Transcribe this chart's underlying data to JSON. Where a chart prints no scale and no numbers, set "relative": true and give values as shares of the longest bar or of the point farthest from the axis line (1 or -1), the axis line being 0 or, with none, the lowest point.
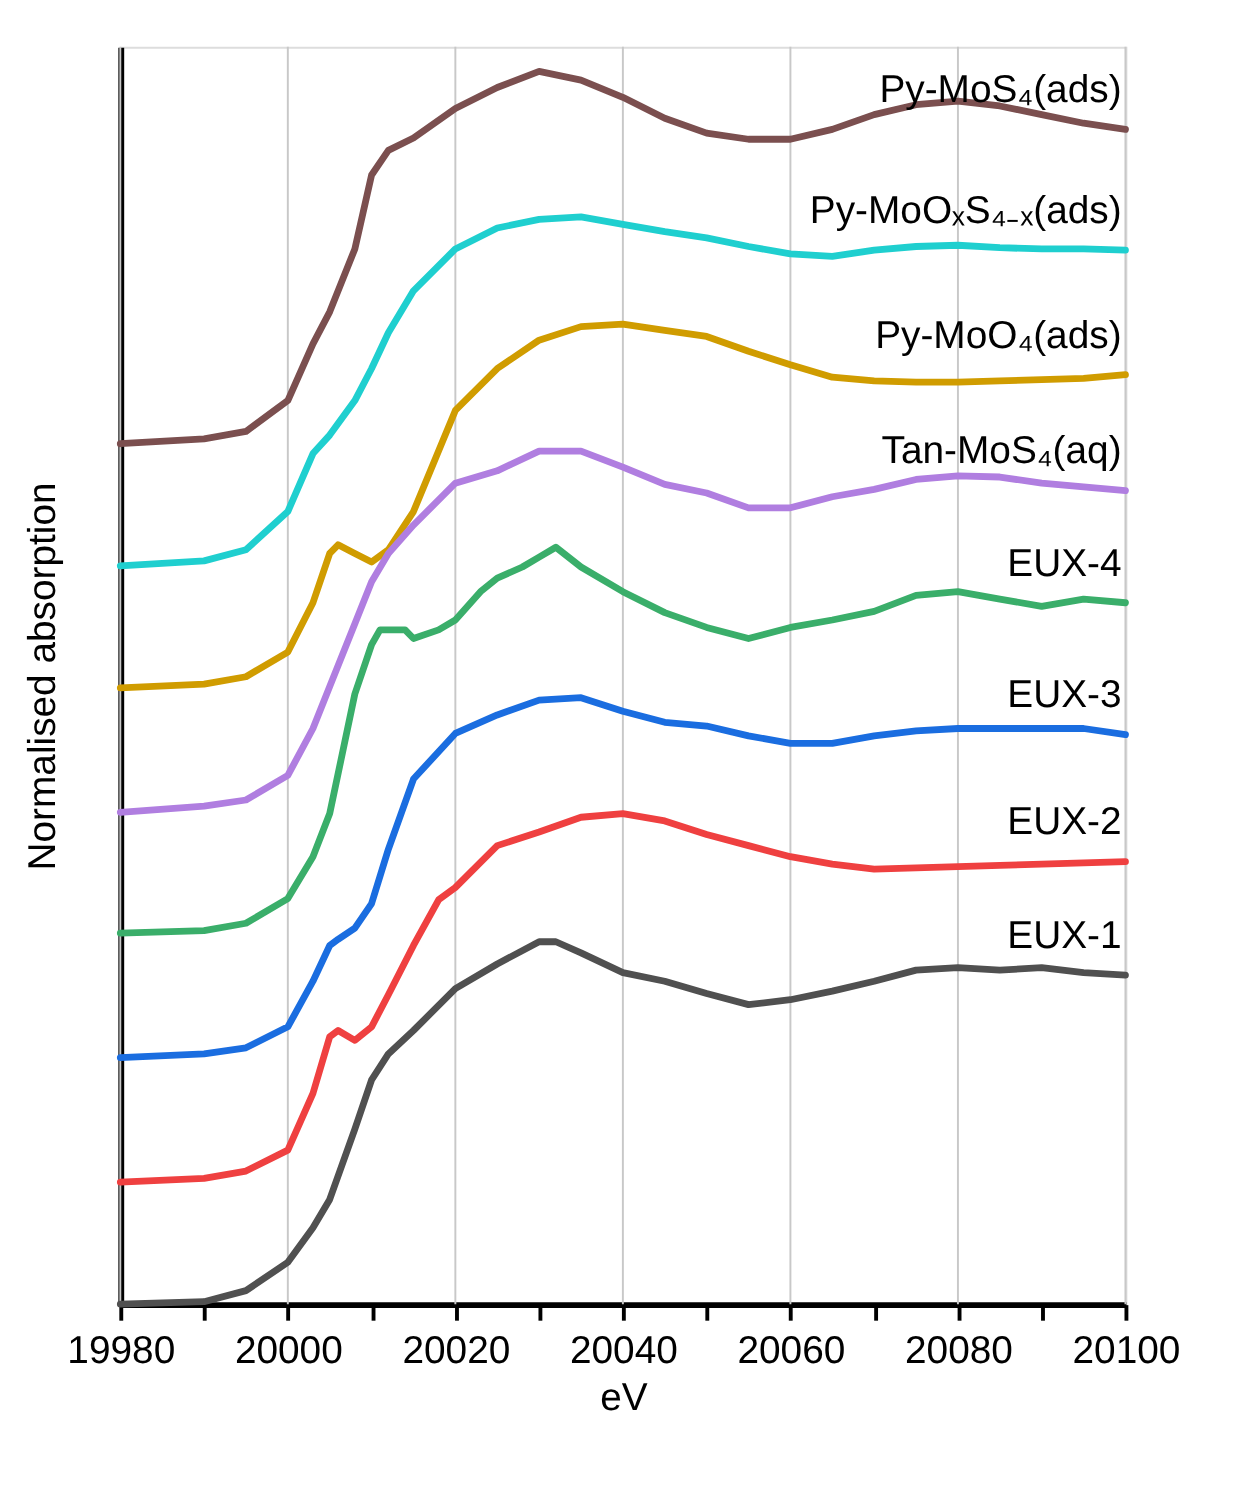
{
  "chart_data": {
    "type": "line",
    "relative": true,
    "xlabel": "eV",
    "ylabel": "Normalised absorption",
    "xlim": [
      19980,
      20100
    ],
    "xticks": [
      19980,
      {
        "value": 19990,
        "label": null
      },
      20000,
      {
        "value": 20010,
        "label": null
      },
      20020,
      {
        "value": 20030,
        "label": null
      },
      20040,
      {
        "value": 20050,
        "label": null
      },
      20060,
      {
        "value": 20070,
        "label": null
      },
      20080,
      {
        "value": 20090,
        "label": null
      },
      20100
    ],
    "grid": "x",
    "marker": "none",
    "line_style": "solid",
    "series": [
      {
        "name": "Py-MoS₄(ads)",
        "color": "#7b4f4f",
        "x": [
          19980,
          19990,
          19995,
          20000,
          20003,
          20005,
          20008,
          20010,
          20012,
          20015,
          20020,
          20025,
          20030,
          20035,
          20040,
          20045,
          20050,
          20055,
          20060,
          20065,
          20070,
          20075,
          20080,
          20085,
          20090,
          20095,
          20100
        ],
        "values": [
          0.698,
          0.702,
          0.708,
          0.733,
          0.779,
          0.805,
          0.856,
          0.916,
          0.936,
          0.946,
          0.97,
          0.987,
          1.0,
          0.993,
          0.979,
          0.962,
          0.95,
          0.945,
          0.945,
          0.953,
          0.965,
          0.973,
          0.976,
          0.972,
          0.965,
          0.958,
          0.953
        ]
      },
      {
        "name": "Py-MoOₓS₄₋ₓ(ads)",
        "color": "#1fcfcf",
        "x": [
          19980,
          19990,
          19995,
          20000,
          20003,
          20005,
          20008,
          20010,
          20012,
          20015,
          20020,
          20025,
          20030,
          20035,
          20040,
          20045,
          20050,
          20055,
          20060,
          20065,
          20070,
          20075,
          20080,
          20085,
          20090,
          20095,
          20100
        ],
        "values": [
          0.599,
          0.603,
          0.612,
          0.643,
          0.69,
          0.705,
          0.733,
          0.759,
          0.788,
          0.822,
          0.856,
          0.873,
          0.88,
          0.882,
          0.876,
          0.87,
          0.865,
          0.858,
          0.852,
          0.85,
          0.855,
          0.858,
          0.859,
          0.857,
          0.856,
          0.856,
          0.855
        ]
      },
      {
        "name": "Py-MoO₄(ads)",
        "color": "#d09c00",
        "x": [
          19980,
          19990,
          19995,
          20000,
          20003,
          20005,
          20006,
          20008,
          20010,
          20012,
          20015,
          20020,
          20025,
          20030,
          20035,
          20040,
          20045,
          20050,
          20055,
          20060,
          20065,
          20070,
          20075,
          20080,
          20085,
          20090,
          20095,
          20100
        ],
        "values": [
          0.5,
          0.503,
          0.509,
          0.529,
          0.569,
          0.609,
          0.616,
          0.609,
          0.602,
          0.612,
          0.643,
          0.725,
          0.759,
          0.782,
          0.793,
          0.795,
          0.79,
          0.785,
          0.773,
          0.762,
          0.752,
          0.749,
          0.748,
          0.748,
          0.749,
          0.75,
          0.751,
          0.754
        ]
      },
      {
        "name": "Tan-MoS₄(aq)",
        "color": "#b07ee0",
        "x": [
          19980,
          19990,
          19995,
          20000,
          20003,
          20005,
          20008,
          20010,
          20012,
          20015,
          20020,
          20025,
          20030,
          20035,
          20040,
          20045,
          20050,
          20055,
          20060,
          20065,
          20070,
          20075,
          20080,
          20085,
          20090,
          20095,
          20100
        ],
        "values": [
          0.399,
          0.404,
          0.409,
          0.429,
          0.467,
          0.501,
          0.552,
          0.586,
          0.609,
          0.632,
          0.666,
          0.676,
          0.692,
          0.692,
          0.679,
          0.665,
          0.658,
          0.646,
          0.646,
          0.655,
          0.661,
          0.669,
          0.672,
          0.671,
          0.666,
          0.663,
          0.66
        ]
      },
      {
        "name": "EUX-4",
        "color": "#3aae6a",
        "x": [
          19980,
          19990,
          19995,
          20000,
          20003,
          20005,
          20008,
          20010,
          20011,
          20012,
          20014,
          20015,
          20018,
          20020,
          20023,
          20025,
          20028,
          20030,
          20032,
          20035,
          20040,
          20045,
          20050,
          20055,
          20060,
          20065,
          20070,
          20075,
          20080,
          20085,
          20090,
          20095,
          20100
        ],
        "values": [
          0.301,
          0.303,
          0.309,
          0.329,
          0.363,
          0.398,
          0.495,
          0.535,
          0.547,
          0.547,
          0.547,
          0.54,
          0.547,
          0.555,
          0.578,
          0.589,
          0.598,
          0.606,
          0.614,
          0.598,
          0.578,
          0.561,
          0.549,
          0.54,
          0.549,
          0.555,
          0.562,
          0.575,
          0.578,
          0.572,
          0.566,
          0.572,
          0.569
        ]
      },
      {
        "name": "EUX-3",
        "color": "#1a6de0",
        "x": [
          19980,
          19990,
          19995,
          20000,
          20003,
          20005,
          20006,
          20008,
          20010,
          20012,
          20015,
          20020,
          20025,
          20030,
          20035,
          20040,
          20045,
          20050,
          20055,
          20060,
          20065,
          20070,
          20075,
          20080,
          20085,
          20090,
          20095,
          20100
        ],
        "values": [
          0.2,
          0.203,
          0.208,
          0.225,
          0.262,
          0.291,
          0.296,
          0.305,
          0.325,
          0.369,
          0.426,
          0.463,
          0.478,
          0.49,
          0.492,
          0.481,
          0.472,
          0.469,
          0.461,
          0.455,
          0.455,
          0.461,
          0.465,
          0.467,
          0.467,
          0.467,
          0.467,
          0.462
        ]
      },
      {
        "name": "EUX-2",
        "color": "#ef4040",
        "x": [
          19980,
          19990,
          19995,
          20000,
          20003,
          20005,
          20006,
          20008,
          20010,
          20012,
          20015,
          20018,
          20020,
          20025,
          20030,
          20035,
          20040,
          20045,
          20050,
          20055,
          20060,
          20065,
          20070,
          20075,
          20080,
          20085,
          20090,
          20095,
          20100
        ],
        "values": [
          0.099,
          0.102,
          0.108,
          0.125,
          0.171,
          0.217,
          0.222,
          0.214,
          0.225,
          0.251,
          0.291,
          0.328,
          0.338,
          0.372,
          0.383,
          0.395,
          0.398,
          0.392,
          0.381,
          0.372,
          0.363,
          0.357,
          0.353,
          0.354,
          0.355,
          0.356,
          0.357,
          0.358,
          0.359
        ]
      },
      {
        "name": "EUX-1",
        "color": "#505050",
        "x": [
          19980,
          19990,
          19995,
          20000,
          20003,
          20005,
          20008,
          20010,
          20012,
          20015,
          20020,
          20025,
          20030,
          20032,
          20035,
          20040,
          20045,
          20050,
          20055,
          20060,
          20065,
          20070,
          20075,
          20080,
          20085,
          20090,
          20095,
          20100
        ],
        "values": [
          0.0,
          0.002,
          0.011,
          0.034,
          0.062,
          0.085,
          0.142,
          0.182,
          0.203,
          0.222,
          0.256,
          0.276,
          0.294,
          0.294,
          0.285,
          0.269,
          0.262,
          0.252,
          0.243,
          0.247,
          0.254,
          0.262,
          0.271,
          0.273,
          0.271,
          0.273,
          0.269,
          0.267
        ]
      }
    ]
  }
}
